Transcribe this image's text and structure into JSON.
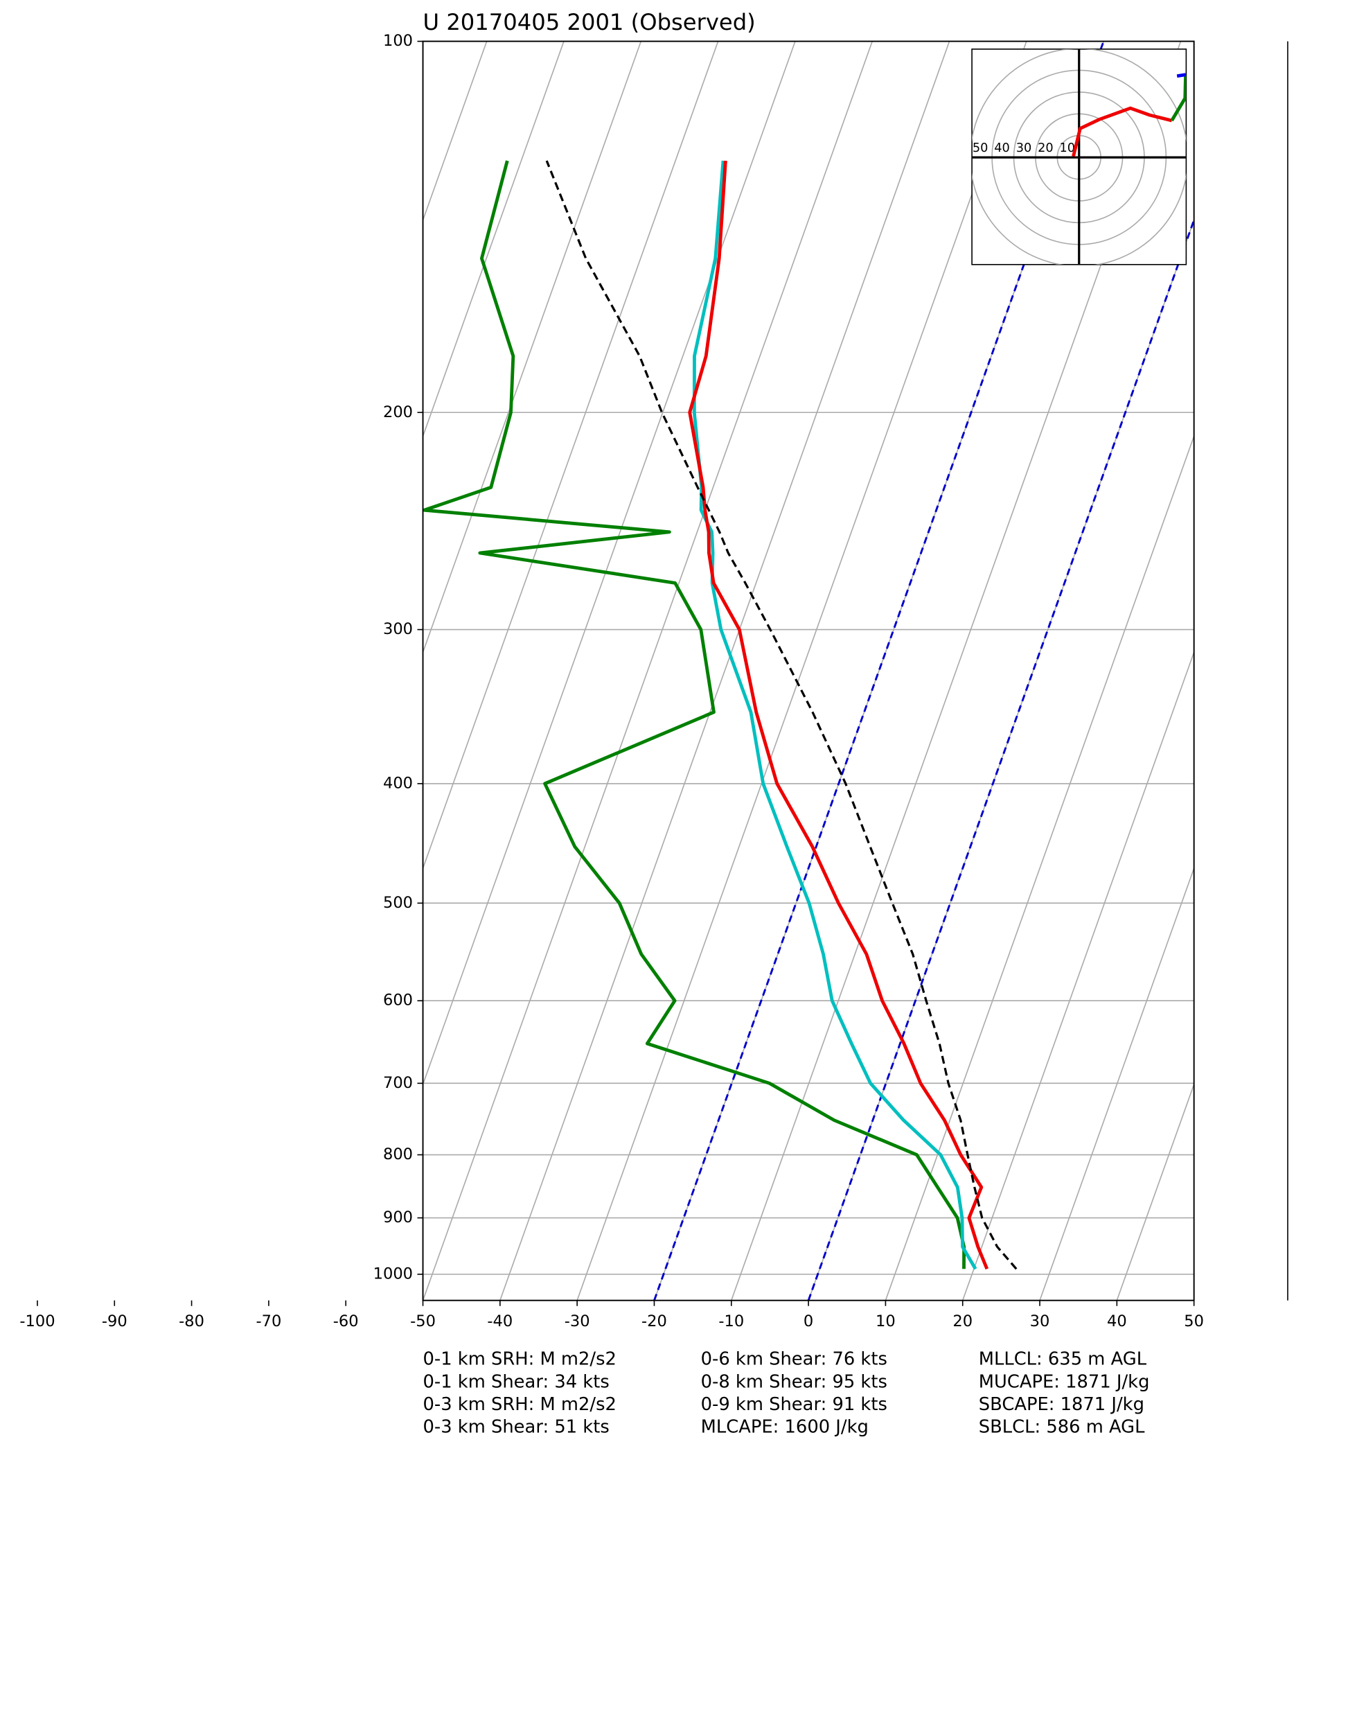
{
  "chart_data": {
    "type": "skewt",
    "title": "U 20170405 2001   (Observed)",
    "pressure": [
      990,
      950,
      900,
      850,
      800,
      750,
      700,
      650,
      600,
      550,
      500,
      450,
      400,
      350,
      300,
      275,
      260,
      250,
      240,
      230,
      200,
      180,
      150,
      125
    ],
    "series": [
      {
        "color": "#008000",
        "values": [
          18.7,
          17.7,
          15.5,
          11.5,
          7.3,
          -5,
          -15.1,
          -32.8,
          -31.2,
          -37.7,
          -42.9,
          -51.3,
          -58.1,
          -39.5,
          -45,
          -50.5,
          -77.2,
          -53.6,
          -86.4,
          -78.8,
          -79.7,
          -82,
          -90.6,
          -91.8
        ]
      },
      {
        "color": "#00bfbf",
        "values": [
          20.2,
          17.5,
          16.1,
          14.1,
          10.4,
          4.0,
          -2.0,
          -6.3,
          -10.8,
          -14.1,
          -18.3,
          -23.8,
          -29.8,
          -34.7,
          -42.4,
          -45.7,
          -47,
          -48.1,
          -50.5,
          -51.5,
          -55.9,
          -58.5,
          -60.3,
          -63.8
        ]
      },
      {
        "color": "#ee0000",
        "values": [
          21.7,
          19.5,
          17,
          17.2,
          13,
          9.3,
          4.5,
          0.5,
          -4.3,
          -8.5,
          -14.5,
          -20.5,
          -28,
          -34,
          -40,
          -45.5,
          -47.5,
          -48.5,
          -50,
          -51.3,
          -56.5,
          -57,
          -59.8,
          -63.5
        ]
      },
      {
        "color": "#000000",
        "dashed": true,
        "values": [
          25.5,
          22.0,
          18.7,
          16.3,
          13.9,
          11.4,
          8.1,
          5.1,
          1.4,
          -2.5,
          -7.5,
          -13,
          -19.1,
          -26.7,
          -36,
          -41.4,
          -45,
          -47.1,
          -49.5,
          -52,
          -60.1,
          -65.6,
          -77.1,
          -86.7
        ]
      }
    ],
    "xlim": [
      -50,
      50
    ],
    "xticks": [
      -100,
      -90,
      -80,
      -70,
      -60,
      -50,
      -40,
      -30,
      -20,
      -10,
      0,
      10,
      20,
      30,
      40,
      50
    ],
    "ylim": [
      1050,
      100
    ],
    "yticks": [
      100,
      200,
      300,
      400,
      500,
      600,
      700,
      800,
      900,
      1000
    ],
    "log_scale": true,
    "grid": true,
    "highlight_isotherms": {
      "color": "#0000cc",
      "values": [
        -20,
        0
      ]
    },
    "hodograph": {
      "rings": [
        {
          "value": 50,
          "label": "50"
        },
        {
          "value": 40,
          "label": "40"
        },
        {
          "value": 30,
          "label": "30"
        },
        {
          "value": 20,
          "label": "20"
        },
        {
          "value": 10,
          "label": "10"
        }
      ],
      "series": [
        {
          "color": "#ee0000",
          "u": [
            -2.6,
            0.5,
            9.2,
            23.6,
            32.3,
            42.6
          ],
          "v": [
            0.5,
            13.3,
            17.4,
            22.6,
            19.5,
            16.9
          ]
        },
        {
          "color": "#008000",
          "u": [
            42.6,
            48.7,
            49
          ],
          "v": [
            16.9,
            27.2,
            38
          ]
        },
        {
          "color": "#0000ee",
          "u": [
            49,
            45
          ],
          "v": [
            38,
            37.4
          ]
        }
      ]
    },
    "stats": [
      [
        "0-1 km SRH: M m2/s2",
        "0-1 km Shear: 34 kts",
        "0-3 km SRH: M m2/s2",
        "0-3 km Shear: 51 kts"
      ],
      [
        "0-6 km Shear: 76 kts",
        "0-8 km Shear: 95 kts",
        "0-9 km Shear: 91 kts",
        "MLCAPE: 1600 J/kg"
      ],
      [
        "MLLCL: 635 m AGL",
        "MUCAPE: 1871 J/kg",
        "SBCAPE: 1871 J/kg",
        "SBLCL: 586 m AGL"
      ]
    ]
  }
}
